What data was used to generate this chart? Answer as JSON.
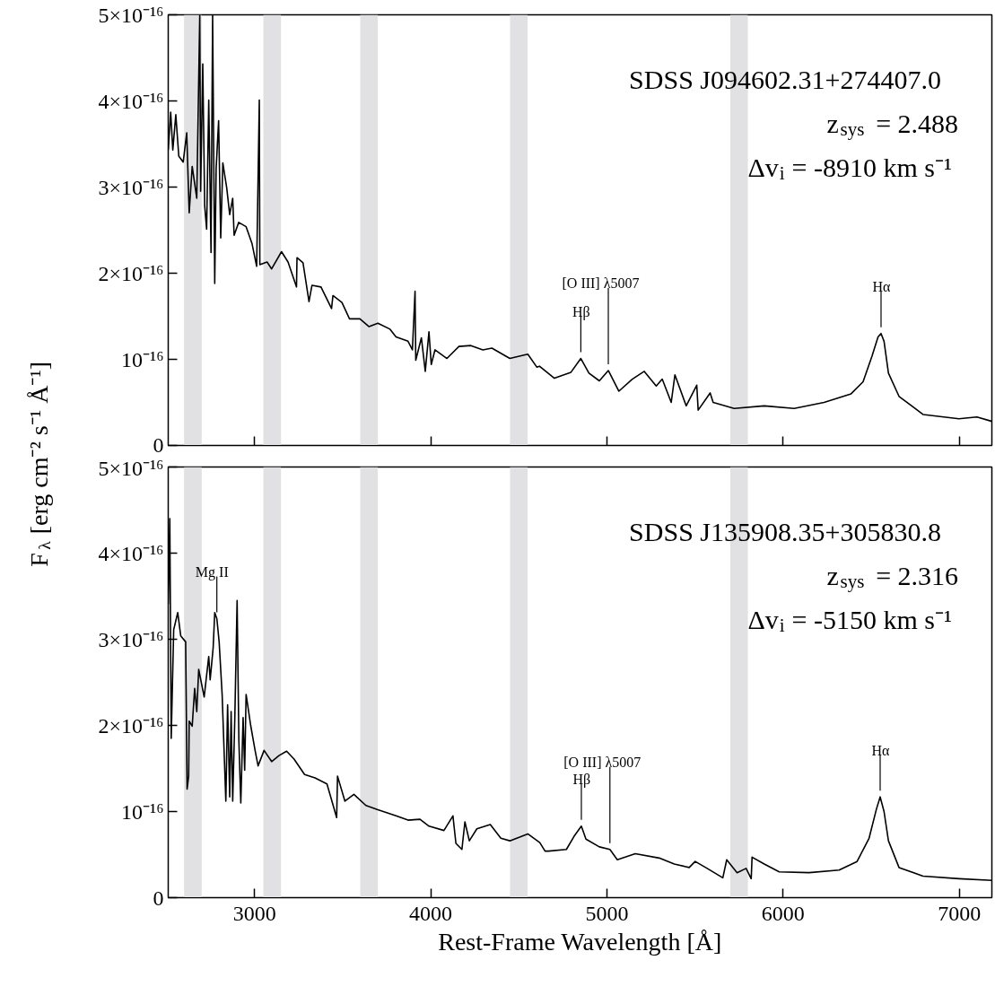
{
  "chart_data": [
    {
      "type": "line",
      "ylabel": "F$_{λ}$ [erg cm⁻² s⁻¹ Å⁻¹]",
      "xlim": [
        2510,
        7185
      ],
      "xticks": [
        3000,
        4000,
        5000,
        6000,
        7000
      ],
      "tick_labels": "y",
      "ylim": [
        0,
        5e-16
      ],
      "yticks": [
        0,
        {
          "value": 1e-16,
          "label": "10⁻¹⁶"
        },
        {
          "value": 2e-16,
          "label": "2×10⁻¹⁶"
        },
        {
          "value": 3e-16,
          "label": "3×10⁻¹⁶"
        },
        {
          "value": 4e-16,
          "label": "4×10⁻¹⁶"
        },
        {
          "value": 5e-16,
          "label": "5×10⁻¹⁶"
        }
      ],
      "grid": false,
      "bands": [
        {
          "axis": "x",
          "from": 2600,
          "to": 2700,
          "color": "#e1e1e4"
        },
        {
          "axis": "x",
          "from": 3050,
          "to": 3150,
          "color": "#e1e1e4"
        },
        {
          "axis": "x",
          "from": 3600,
          "to": 3700,
          "color": "#e1e1e4"
        },
        {
          "axis": "x",
          "from": 4450,
          "to": 4550,
          "color": "#e1e1e4"
        },
        {
          "axis": "x",
          "from": 5700,
          "to": 5800,
          "color": "#e1e1e4"
        }
      ],
      "annotations": [
        "SDSS J094602.31+274407.0",
        "z$_{sys}$ = 2.488",
        "Δv$_{i}$ = -8910 km s⁻¹",
        {
          "text": "Hβ",
          "x": 4852,
          "y": 1.01e-16
        },
        {
          "text": "[O III] λ5007",
          "x": 5008,
          "y": 8.7e-17
        },
        {
          "text": "Hα",
          "x": 6556,
          "y": 1.3e-16
        }
      ],
      "x": [
        2510,
        2524,
        2536,
        2553,
        2570,
        2595,
        2615,
        2629,
        2646,
        2672,
        2689,
        2694,
        2706,
        2717,
        2728,
        2740,
        2753,
        2762,
        2774,
        2782,
        2796,
        2808,
        2820,
        2842,
        2859,
        2876,
        2884,
        2910,
        2952,
        2986,
        3012,
        3027,
        3030,
        3071,
        3097,
        3153,
        3190,
        3238,
        3241,
        3275,
        3309,
        3326,
        3377,
        3437,
        3445,
        3496,
        3539,
        3598,
        3650,
        3700,
        3769,
        3803,
        3871,
        3896,
        3911,
        3915,
        3947,
        3969,
        3990,
        4003,
        4024,
        4092,
        4160,
        4228,
        4296,
        4347,
        4449,
        4551,
        4602,
        4617,
        4702,
        4796,
        4852,
        4898,
        4957,
        5008,
        5068,
        5144,
        5212,
        5280,
        5314,
        5365,
        5386,
        5450,
        5510,
        5518,
        5586,
        5603,
        5722,
        5893,
        6063,
        6233,
        6386,
        6454,
        6505,
        6539,
        6556,
        6573,
        6598,
        6658,
        6794,
        6998,
        7100,
        7185
      ],
      "series": [
        {
          "color": "#000000",
          "values": [
            3.43e-16,
            3.87e-16,
            3.43e-16,
            3.84e-16,
            3.36e-16,
            3.29e-16,
            3.63e-16,
            2.7e-16,
            3.24e-16,
            2.87e-16,
            5e-16,
            2.95e-16,
            4.43e-16,
            2.78e-16,
            2.51e-16,
            4.01e-16,
            2.24e-16,
            5e-16,
            1.88e-16,
            3.22e-16,
            3.77e-16,
            2.41e-16,
            3.28e-16,
            2.99e-16,
            2.68e-16,
            2.87e-16,
            2.44e-16,
            2.59e-16,
            2.54e-16,
            2.34e-16,
            2.08e-16,
            4.01e-16,
            2.1e-16,
            2.13e-16,
            2.05e-16,
            2.25e-16,
            2.13e-16,
            1.84e-16,
            2.18e-16,
            2.12e-16,
            1.67e-16,
            1.86e-16,
            1.84e-16,
            1.59e-16,
            1.74e-16,
            1.66e-16,
            1.47e-16,
            1.47e-16,
            1.38e-16,
            1.42e-16,
            1.35e-16,
            1.26e-16,
            1.21e-16,
            1.11e-16,
            1.79e-16,
            9.9e-17,
            1.25e-16,
            8.6e-17,
            1.32e-16,
            9.4e-17,
            1.11e-16,
            1.01e-16,
            1.15e-16,
            1.16e-16,
            1.11e-16,
            1.13e-16,
            1.01e-16,
            1.06e-16,
            9.1e-17,
            9.2e-17,
            7.8e-17,
            8.5e-17,
            1.01e-16,
            8.4e-17,
            7.5e-17,
            8.7e-17,
            6.3e-17,
            7.7e-17,
            8.6e-17,
            6.9e-17,
            7.7e-17,
            5e-17,
            8.2e-17,
            4.6e-17,
            7e-17,
            4.1e-17,
            6.1e-17,
            5e-17,
            4.3e-17,
            4.6e-17,
            4.3e-17,
            5e-17,
            6e-17,
            7.4e-17,
            1.04e-16,
            1.26e-16,
            1.3e-16,
            1.21e-16,
            8.4e-17,
            5.7e-17,
            3.6e-17,
            3.1e-17,
            3.3e-17,
            2.8e-17
          ]
        }
      ]
    },
    {
      "type": "line",
      "xlabel": "Rest-Frame Wavelength [Å]",
      "xlim": [
        2510,
        7185
      ],
      "xticks": [
        3000,
        4000,
        5000,
        6000,
        7000
      ],
      "ylim": [
        0,
        5e-16
      ],
      "yticks": [
        0,
        {
          "value": 1e-16,
          "label": "10⁻¹⁶"
        },
        {
          "value": 2e-16,
          "label": "2×10⁻¹⁶"
        },
        {
          "value": 3e-16,
          "label": "3×10⁻¹⁶"
        },
        {
          "value": 4e-16,
          "label": "4×10⁻¹⁶"
        },
        {
          "value": 5e-16,
          "label": "5×10⁻¹⁶"
        }
      ],
      "grid": false,
      "bands": [
        {
          "axis": "x",
          "from": 2600,
          "to": 2700,
          "color": "#e1e1e4"
        },
        {
          "axis": "x",
          "from": 3050,
          "to": 3150,
          "color": "#e1e1e4"
        },
        {
          "axis": "x",
          "from": 3600,
          "to": 3700,
          "color": "#e1e1e4"
        },
        {
          "axis": "x",
          "from": 4450,
          "to": 4550,
          "color": "#e1e1e4"
        },
        {
          "axis": "x",
          "from": 5700,
          "to": 5800,
          "color": "#e1e1e4"
        }
      ],
      "annotations": [
        "SDSS J135908.35+305830.8",
        "z$_{sys}$ = 2.316",
        "Δv$_{i}$ = -5150 km s⁻¹",
        {
          "text": "Mg II",
          "x": 2786,
          "y": 3.24e-16
        },
        {
          "text": "Hβ",
          "x": 4855,
          "y": 8.3e-17
        },
        {
          "text": "[O III] λ5007",
          "x": 5017,
          "y": 5.6e-17
        },
        {
          "text": "Hα",
          "x": 6551,
          "y": 1.17e-16
        }
      ],
      "x": [
        2510,
        2519,
        2527,
        2541,
        2564,
        2581,
        2609,
        2617,
        2626,
        2629,
        2646,
        2660,
        2672,
        2683,
        2714,
        2740,
        2748,
        2765,
        2774,
        2786,
        2799,
        2816,
        2837,
        2847,
        2859,
        2867,
        2876,
        2888,
        2901,
        2911,
        2922,
        2935,
        2944,
        2952,
        2978,
        3003,
        3020,
        3054,
        3097,
        3139,
        3182,
        3224,
        3284,
        3343,
        3411,
        3466,
        3471,
        3513,
        3564,
        3632,
        3700,
        3803,
        3871,
        3939,
        3990,
        4075,
        4126,
        4143,
        4177,
        4194,
        4219,
        4262,
        4338,
        4398,
        4449,
        4551,
        4619,
        4649,
        4668,
        4770,
        4813,
        4855,
        4881,
        4957,
        5017,
        5059,
        5161,
        5297,
        5382,
        5467,
        5501,
        5569,
        5658,
        5680,
        5739,
        5790,
        5819,
        5824,
        5893,
        5978,
        6148,
        6318,
        6420,
        6488,
        6530,
        6551,
        6573,
        6598,
        6658,
        6794,
        6998,
        7185
      ],
      "series": [
        {
          "color": "#000000",
          "values": [
            3.41e-16,
            4.4e-16,
            1.85e-16,
            3.11e-16,
            3.31e-16,
            3.04e-16,
            2.97e-16,
            1.26e-16,
            1.41e-16,
            2.05e-16,
            1.99e-16,
            2.43e-16,
            2.16e-16,
            2.65e-16,
            2.33e-16,
            2.8e-16,
            2.53e-16,
            2.9e-16,
            3.31e-16,
            3.24e-16,
            2.97e-16,
            2.36e-16,
            1.12e-16,
            2.24e-16,
            1.17e-16,
            2.16e-16,
            1.12e-16,
            2.09e-16,
            3.45e-16,
            1.82e-16,
            1.1e-16,
            2.09e-16,
            1.48e-16,
            2.36e-16,
            2e-16,
            1.71e-16,
            1.53e-16,
            1.71e-16,
            1.58e-16,
            1.65e-16,
            1.7e-16,
            1.61e-16,
            1.43e-16,
            1.39e-16,
            1.32e-16,
            9.3e-17,
            1.41e-16,
            1.12e-16,
            1.2e-16,
            1.07e-16,
            1.02e-16,
            9.5e-17,
            9e-17,
            9.1e-17,
            8.3e-17,
            7.8e-17,
            9.5e-17,
            6.3e-17,
            5.6e-17,
            8.8e-17,
            6.6e-17,
            8e-17,
            8.5e-17,
            6.9e-17,
            6.6e-17,
            7.4e-17,
            6.4e-17,
            5.4e-17,
            5.4e-17,
            5.6e-17,
            7.1e-17,
            8.3e-17,
            6.8e-17,
            5.9e-17,
            5.6e-17,
            4.4e-17,
            5.1e-17,
            4.6e-17,
            3.9e-17,
            3.5e-17,
            4.2e-17,
            3.4e-17,
            2.3e-17,
            4.4e-17,
            2.9e-17,
            3.4e-17,
            2.2e-17,
            4.7e-17,
            3.9e-17,
            3e-17,
            2.9e-17,
            3.2e-17,
            4.2e-17,
            6.9e-17,
            1.03e-16,
            1.17e-16,
            1e-16,
            6.6e-17,
            3.5e-17,
            2.5e-17,
            2.2e-17,
            2e-17
          ]
        }
      ]
    }
  ]
}
